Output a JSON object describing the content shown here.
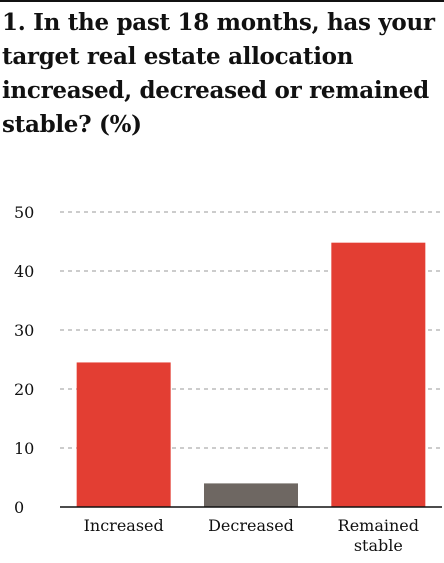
{
  "title": "1. In the past 18 months, has your target real estate allocation increased, decreased or remained stable? (%)",
  "chart_data": {
    "type": "bar",
    "title": "1. In the past 18 months, has your target real estate allocation increased, decreased or remained stable? (%)",
    "categories": [
      [
        "Increased"
      ],
      [
        "Decreased"
      ],
      [
        "Remained",
        "stable"
      ]
    ],
    "values": [
      24.5,
      4,
      44.8
    ],
    "colors": [
      "#e33e33",
      "#6e6762",
      "#e33e33"
    ],
    "yticks": [
      "0",
      "10",
      "20",
      "30",
      "40",
      "50"
    ],
    "ylim": [
      0,
      50
    ],
    "grid": true,
    "xlabel": "",
    "ylabel": ""
  }
}
